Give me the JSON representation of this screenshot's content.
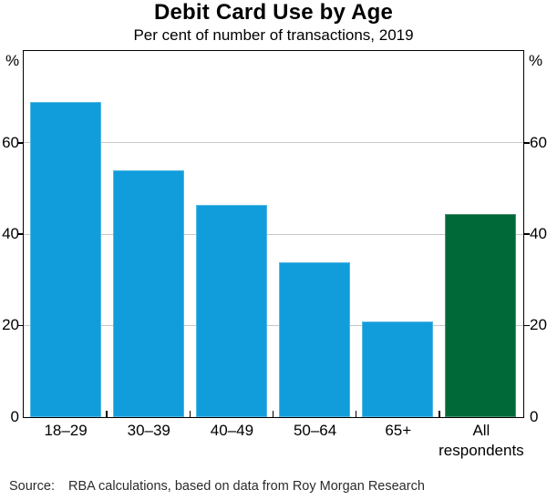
{
  "title": "Debit Card Use by Age",
  "subtitle": "Per cent of number of transactions, 2019",
  "axis": {
    "unit": "%"
  },
  "footer": {
    "source_label": "Source:",
    "source_text": "RBA calculations, based on data from Roy Morgan Research"
  },
  "colors": {
    "bar_blue": "#119DDB",
    "bar_green": "#006938",
    "gridline": "#C8C8C8",
    "frame": "#000000"
  },
  "chart_data": {
    "type": "bar",
    "title": "Debit Card Use by Age",
    "subtitle": "Per cent of number of transactions, 2019",
    "categories": [
      "18–29",
      "30–39",
      "40–49",
      "50–64",
      "65+",
      "All\nrespondents"
    ],
    "values": [
      69,
      54,
      46.5,
      34,
      21,
      44.5
    ],
    "bar_colors": [
      "#119DDB",
      "#119DDB",
      "#119DDB",
      "#119DDB",
      "#119DDB",
      "#006938"
    ],
    "xlabel": "",
    "ylabel": "%",
    "ylim": [
      0,
      80
    ],
    "yticks": [
      0,
      20,
      40,
      60
    ],
    "grid": true,
    "legend": "none",
    "dual_axis_labels": true
  }
}
